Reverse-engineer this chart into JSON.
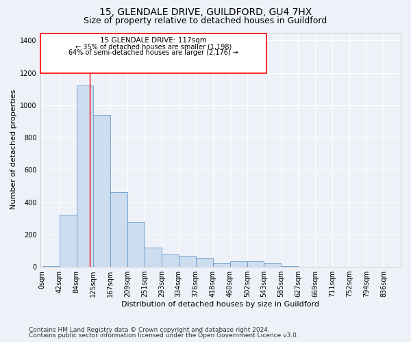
{
  "title1": "15, GLENDALE DRIVE, GUILDFORD, GU4 7HX",
  "title2": "Size of property relative to detached houses in Guildford",
  "xlabel": "Distribution of detached houses by size in Guildford",
  "ylabel": "Number of detached properties",
  "footnote1": "Contains HM Land Registry data © Crown copyright and database right 2024.",
  "footnote2": "Contains public sector information licensed under the Open Government Licence v3.0.",
  "annotation_line1": "15 GLENDALE DRIVE: 117sqm",
  "annotation_line2": "← 35% of detached houses are smaller (1,198)",
  "annotation_line3": "64% of semi-detached houses are larger (2,176) →",
  "bar_color": "#ccddf0",
  "bar_edge_color": "#6699cc",
  "property_line_x": 117,
  "bin_edges": [
    0,
    42,
    84,
    125,
    167,
    209,
    251,
    293,
    334,
    376,
    418,
    460,
    502,
    543,
    585,
    627,
    669,
    711,
    752,
    794,
    836
  ],
  "bin_labels": [
    "0sqm",
    "42sqm",
    "84sqm",
    "125sqm",
    "167sqm",
    "209sqm",
    "251sqm",
    "293sqm",
    "334sqm",
    "376sqm",
    "418sqm",
    "460sqm",
    "502sqm",
    "543sqm",
    "585sqm",
    "627sqm",
    "669sqm",
    "711sqm",
    "752sqm",
    "794sqm",
    "836sqm"
  ],
  "values": [
    5,
    320,
    1120,
    940,
    460,
    275,
    120,
    75,
    70,
    55,
    20,
    35,
    35,
    20,
    5,
    0,
    0,
    0,
    0,
    0
  ],
  "ylim": [
    0,
    1450
  ],
  "yticks": [
    0,
    200,
    400,
    600,
    800,
    1000,
    1200,
    1400
  ],
  "background_color": "#eef2f8",
  "grid_color": "#ffffff",
  "title1_fontsize": 10,
  "title2_fontsize": 9,
  "footnote_fontsize": 6.5,
  "axis_label_fontsize": 8,
  "tick_fontsize": 7
}
